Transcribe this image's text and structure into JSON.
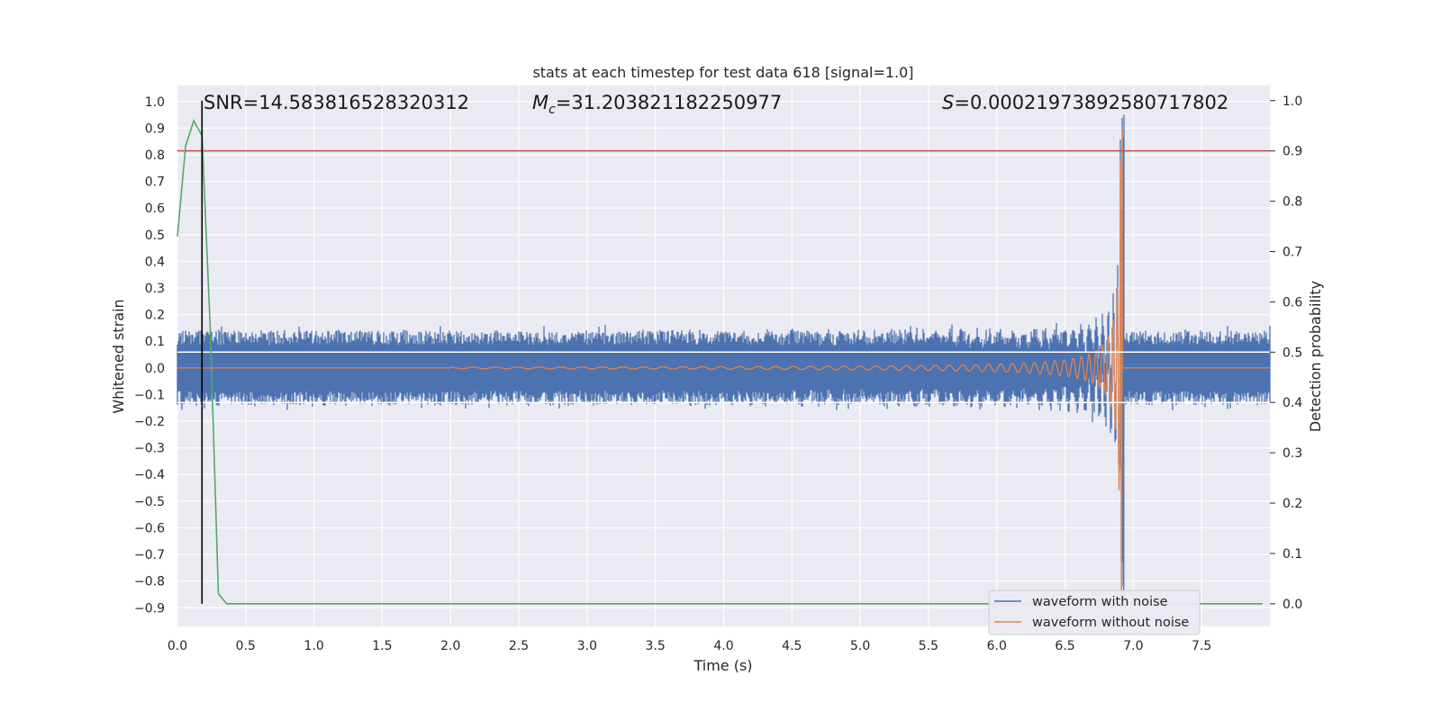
{
  "chart_data": {
    "type": "line",
    "title": "stats at each timestep for test data 618 [signal=1.0]",
    "xlabel": "Time (s)",
    "ylabel": "Whitened strain",
    "y2label": "Detection probability",
    "xlim": [
      0.0,
      8.0
    ],
    "ylim": [
      -0.97,
      1.06
    ],
    "y2lim": [
      -0.045,
      1.03
    ],
    "x_ticks": [
      "0.0",
      "0.5",
      "1.0",
      "1.5",
      "2.0",
      "2.5",
      "3.0",
      "3.5",
      "4.0",
      "4.5",
      "5.0",
      "5.5",
      "6.0",
      "6.5",
      "7.0",
      "7.5"
    ],
    "y_ticks": [
      "1.0",
      "0.9",
      "0.8",
      "0.7",
      "0.6",
      "0.5",
      "0.4",
      "0.3",
      "0.2",
      "0.1",
      "0.0",
      "−0.1",
      "−0.2",
      "−0.3",
      "−0.4",
      "−0.5",
      "−0.6",
      "−0.7",
      "−0.8",
      "−0.9"
    ],
    "y2_ticks": [
      "1.0",
      "0.9",
      "0.8",
      "0.7",
      "0.6",
      "0.5",
      "0.4",
      "0.3",
      "0.2",
      "0.1",
      "0.0"
    ],
    "grid": true,
    "legend_position": "lower right",
    "annotations": {
      "snr": "SNR=14.583816528320312",
      "mc_symbol": "M",
      "mc_sub": "c",
      "mc_value": "=31.203821182250977",
      "s_symbol": "S",
      "s_value": "=0.00021973892580717802"
    },
    "series": [
      {
        "name": "waveform with noise",
        "color": "#4c72b0",
        "axis": "left",
        "noise_amplitude": 0.14,
        "merger_time": 6.92
      },
      {
        "name": "waveform without noise",
        "color": "#dd8452",
        "axis": "left",
        "merger_time": 6.92,
        "start_time": 2.0
      },
      {
        "name": "",
        "color": "#55a868",
        "axis": "right",
        "x": [
          0.0,
          0.06,
          0.12,
          0.18,
          0.24,
          0.3,
          0.36,
          0.42,
          8.0
        ],
        "y": [
          0.73,
          0.91,
          0.96,
          0.93,
          0.55,
          0.02,
          0.0,
          0.0,
          0.0
        ]
      }
    ],
    "threshold_line": {
      "axis": "right",
      "y": 0.9,
      "color": "#c44e52"
    },
    "vertical_marker": {
      "x": 0.18,
      "y_top": 1.0,
      "y_bottom": 0.0,
      "color": "#000000"
    },
    "white_bands": {
      "axis": "right",
      "y": [
        0.5,
        0.4
      ]
    }
  }
}
